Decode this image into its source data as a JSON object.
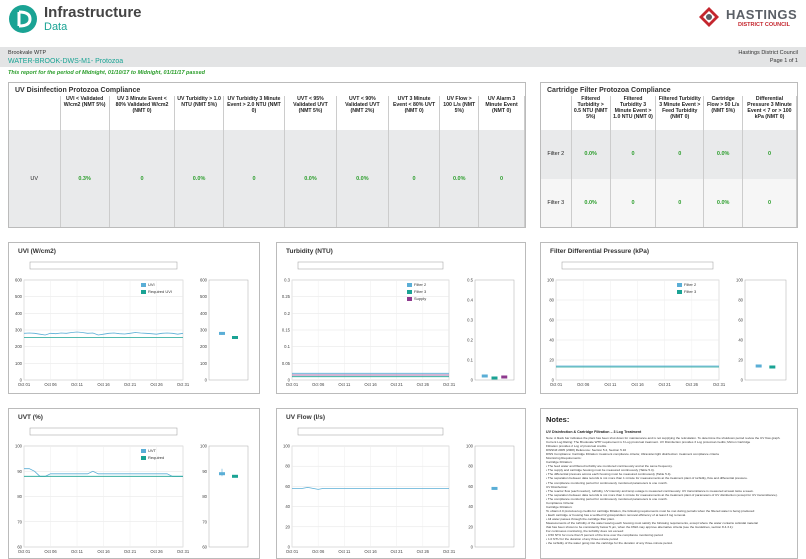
{
  "header": {
    "brand_title": "Infrastructure",
    "brand_sub": "Data",
    "council_title": "HASTINGS",
    "council_sub": "DISTRICT COUNCIL"
  },
  "meta": {
    "plant": "Brookvale WTP",
    "report_name": "WATER-BROOK-DWS-M1- Protozoa",
    "org": "Hastings District Council",
    "page": "Page 1 of 1",
    "period": "This report for the period of Midnight, 01/10/17 to Midnight, 01/11/17 passed"
  },
  "uv_table": {
    "title": "UV Disinfection Protozoa Compliance",
    "headers": [
      "UVI < Validated W/cm2 (NMT 5%)",
      "UV 3 Minute Event < 80% Validated W/cm2 (NMT 0)",
      "UV Turbidity > 1.0 NTU (NMT 5%)",
      "UV Turbidity 3 Minute Event > 2.0 NTU (NMT 0)",
      "UVT < 95% Validated UVT (NMT 5%)",
      "UVT < 90% Validated UVT (NMT 2%)",
      "UVT 3 Minute Event < 80% UVT (NMT 0)",
      "UV Flow > 100 L/s (NMT 5%)",
      "UV Alarm 3 Minute Event (NMT 0)"
    ],
    "rows": [
      {
        "label": "UV",
        "values": [
          "0.3%",
          "0",
          "0.0%",
          "0",
          "0.0%",
          "0.0%",
          "0",
          "0.0%",
          "0"
        ]
      }
    ]
  },
  "cf_table": {
    "title": "Cartridge Filter Protozoa Compliance",
    "headers": [
      "Filtered Turbidity > 0.5 NTU (NMT 5%)",
      "Filtered Turbidity 3 Minute Event > 1.0 NTU (NMT 0)",
      "Filtered Turbidity 3 Minute Event > Feed Turbidity (NMT 0)",
      "Cartridge Flow > 50 L/s (NMT 5%)",
      "Differential Pressure 3 Minute Event < 7 or > 100 kPa (NMT 0)"
    ],
    "rows": [
      {
        "label": "Filter 2",
        "values": [
          "0.0%",
          "0",
          "0",
          "0.0%",
          "0"
        ]
      },
      {
        "label": "Filter 3",
        "values": [
          "0.0%",
          "0",
          "0",
          "0.0%",
          "0"
        ]
      }
    ]
  },
  "chart_data": [
    {
      "title": "UVI (W/cm2)",
      "type": "line",
      "x_ticks": [
        "Oct 01",
        "Oct 06",
        "Oct 11",
        "Oct 16",
        "Oct 21",
        "Oct 26",
        "Oct 31"
      ],
      "ylim": [
        0,
        600
      ],
      "y_ticks": [
        "0",
        "100",
        "200",
        "300",
        "400",
        "500",
        "600"
      ],
      "legend": [
        "UVI",
        "Required UVI"
      ],
      "series": [
        {
          "name": "UVI",
          "color": "#5aaed6",
          "values": [
            280,
            282,
            280,
            275,
            270,
            280,
            278,
            282,
            280,
            285,
            288,
            285,
            280,
            282,
            270,
            275,
            280,
            282,
            278,
            276,
            280,
            285,
            282,
            280,
            278,
            275,
            280,
            282,
            280,
            275,
            280
          ]
        },
        {
          "name": "Required UVI",
          "color": "#1aa394",
          "values": [
            255,
            255,
            255,
            255,
            255,
            255,
            255,
            255,
            255,
            255,
            255,
            255,
            255,
            255,
            255,
            255,
            255,
            255,
            255,
            255,
            255,
            255,
            255,
            255,
            255,
            255,
            255,
            255,
            255,
            255,
            255
          ]
        }
      ],
      "box_ylim": [
        0,
        600
      ],
      "box_y_ticks": [
        "0",
        "100",
        "200",
        "300",
        "400",
        "500",
        "600"
      ]
    },
    {
      "title": "Turbidity (NTU)",
      "type": "line",
      "x_ticks": [
        "Oct 01",
        "Oct 06",
        "Oct 11",
        "Oct 16",
        "Oct 21",
        "Oct 26",
        "Oct 31"
      ],
      "ylim": [
        0,
        0.3
      ],
      "y_ticks": [
        "0",
        "0.05",
        "0.1",
        "0.15",
        "0.2",
        "0.25",
        "0.3"
      ],
      "legend": [
        "Filter 2",
        "Filter 3",
        "Supply"
      ],
      "series": [
        {
          "name": "Filter 2",
          "color": "#5aaed6",
          "values": [
            0.02,
            0.02,
            0.02,
            0.02,
            0.02,
            0.02,
            0.02,
            0.02,
            0.02,
            0.02,
            0.02,
            0.02,
            0.02,
            0.02,
            0.02,
            0.02,
            0.02,
            0.02,
            0.02,
            0.02,
            0.02,
            0.02,
            0.02,
            0.02,
            0.02,
            0.02,
            0.02,
            0.02,
            0.02,
            0.02,
            0.02
          ]
        },
        {
          "name": "Filter 3",
          "color": "#1aa394",
          "values": [
            0.01,
            0.01,
            0.01,
            0.01,
            0.01,
            0.01,
            0.01,
            0.01,
            0.01,
            0.01,
            0.01,
            0.01,
            0.01,
            0.01,
            0.01,
            0.01,
            0.01,
            0.01,
            0.01,
            0.01,
            0.01,
            0.01,
            0.01,
            0.01,
            0.01,
            0.01,
            0.01,
            0.01,
            0.01,
            0.01,
            0.01
          ]
        },
        {
          "name": "Supply",
          "color": "#8e3a8e",
          "values": [
            0.015,
            0.015,
            0.015,
            0.015,
            0.015,
            0.015,
            0.015,
            0.015,
            0.015,
            0.015,
            0.015,
            0.015,
            0.015,
            0.015,
            0.015,
            0.015,
            0.015,
            0.015,
            0.015,
            0.015,
            0.015,
            0.015,
            0.015,
            0.015,
            0.015,
            0.015,
            0.015,
            0.015,
            0.015,
            0.015,
            0.015
          ]
        }
      ],
      "box_ylim": [
        0,
        0.5
      ],
      "box_y_ticks": [
        "0",
        "0.1",
        "0.2",
        "0.3",
        "0.4",
        "0.5"
      ]
    },
    {
      "title": "Filter Differential Pressure (kPa)",
      "type": "line",
      "x_ticks": [
        "Oct 01",
        "Oct 06",
        "Oct 11",
        "Oct 16",
        "Oct 21",
        "Oct 26",
        "Oct 31"
      ],
      "ylim": [
        0,
        100
      ],
      "y_ticks": [
        "0",
        "20",
        "40",
        "60",
        "80",
        "100"
      ],
      "legend": [
        "Filter 2",
        "Filter 3"
      ],
      "series": [
        {
          "name": "Filter 2",
          "color": "#5aaed6",
          "values": [
            14,
            14,
            14,
            14,
            14,
            14,
            14,
            14,
            14,
            14,
            14,
            14,
            14,
            14,
            14,
            14,
            14,
            14,
            14,
            14,
            14,
            14,
            14,
            14,
            14,
            14,
            14,
            14,
            14,
            14,
            14
          ]
        },
        {
          "name": "Filter 3",
          "color": "#1aa394",
          "values": [
            13,
            13,
            13,
            13,
            13,
            13,
            13,
            13,
            13,
            13,
            13,
            13,
            13,
            13,
            13,
            13,
            13,
            13,
            13,
            13,
            13,
            13,
            13,
            13,
            13,
            13,
            13,
            13,
            13,
            13,
            13
          ]
        }
      ],
      "box_ylim": [
        0,
        100
      ],
      "box_y_ticks": [
        "0",
        "20",
        "40",
        "60",
        "80",
        "100"
      ]
    },
    {
      "title": "UVT (%)",
      "type": "line",
      "x_ticks": [
        "Oct 01",
        "Oct 06",
        "Oct 11",
        "Oct 16",
        "Oct 21",
        "Oct 26",
        "Oct 31"
      ],
      "ylim": [
        60,
        100
      ],
      "y_ticks": [
        "60",
        "70",
        "80",
        "90",
        "100"
      ],
      "legend": [
        "UVT",
        "Required"
      ],
      "series": [
        {
          "name": "UVT",
          "color": "#5aaed6",
          "values": [
            91,
            91,
            90,
            88,
            88,
            89,
            89,
            89,
            89,
            89,
            89,
            89,
            89,
            90,
            89,
            89,
            89,
            89,
            89,
            89,
            89,
            89,
            89,
            89,
            89,
            89,
            89,
            89,
            88,
            88,
            88
          ]
        },
        {
          "name": "Required",
          "color": "#1aa394",
          "values": [
            88,
            88,
            88,
            88,
            88,
            88,
            88,
            88,
            88,
            88,
            88,
            88,
            88,
            88,
            88,
            88,
            88,
            88,
            88,
            88,
            88,
            88,
            88,
            88,
            88,
            88,
            88,
            88,
            88,
            88,
            88
          ]
        }
      ],
      "box_ylim": [
        60,
        100
      ],
      "box_y_ticks": [
        "60",
        "70",
        "80",
        "90",
        "100"
      ]
    },
    {
      "title": "UV Flow (l/s)",
      "type": "line",
      "x_ticks": [
        "Oct 01",
        "Oct 06",
        "Oct 11",
        "Oct 16",
        "Oct 21",
        "Oct 26",
        "Oct 31"
      ],
      "ylim": [
        0,
        100
      ],
      "y_ticks": [
        "0",
        "20",
        "40",
        "60",
        "80",
        "100"
      ],
      "legend": [],
      "series": [
        {
          "name": "",
          "color": "#5aaed6",
          "values": [
            58,
            58,
            58,
            59,
            58,
            57,
            58,
            58,
            58,
            58,
            58,
            58,
            58,
            58,
            58,
            58,
            58,
            58,
            58,
            58,
            58,
            58,
            58,
            58,
            58,
            58,
            58,
            58,
            58,
            58,
            58
          ]
        }
      ],
      "box_ylim": [
        0,
        100
      ],
      "box_y_ticks": [
        "0",
        "20",
        "40",
        "60",
        "80",
        "100"
      ]
    }
  ],
  "notes": {
    "title": "Notes:",
    "heading": "UV Disinfection & Cartridge Filtration – 3 Log Treatment",
    "lines": [
      "Note: A black bar indicates the plant has been shut down for maintenance and is not supplying the reticulation. To determine the shutdown period review the UV flow graph.",
      "Current Log Rating: The Brookvale WTP requirement is 3 Log protozoal treatment. UV Disinfection provides 3 Log protozoal credits; Micron Cartridge",
      "Filtration provides 2 Log of protozoal credits.",
      "DWSNZ 2005 (2008) Reference: Section 5.2, Section 5.16",
      "DWS Compliance: Cartridge Filtration: treatment compliance criteria; Ultraviolet light disinfection: treatment compliance criteria",
      "Monitoring Requirements:",
      "Cartridge Filtration:",
      "• The feed water and filtered turbidity are monitored continuously and at the same frequency.",
      "• The supply and cartridge housing must be measured continuously (Table 5.4).",
      "• The differential pressure across each housing must be measured continuously (Table 5.4).",
      "• The separation between data records is not more than 1 minute for measurements at the treatment plant of turbidity, flow and differential pressure.",
      "• The compliance monitoring period for continuously monitored parameters is one month.",
      "UV Disinfection:",
      "• The reactor flow (each reactor), turbidity, UV intensity and lamp outage is measured continuously. UV transmittance is measured at least twice a week.",
      "• The separation between data records is not more than 1 minute for measurements at the treatment plant of parameters of UV disinfection (except for UV transmittance).",
      "• The compliance monitoring period for continuously monitored parameters is one month.",
      "Compliance Criteria:",
      "Cartridge Filtration:",
      "To obtain 2.0 protozoa log credits for cartridge filtration, the following requirements must be met during periods when the filtered water is being produced:",
      "• Each cartridge or housing has a verified Cryptosporidium removal efficiency of at least 3 log removal.",
      "• All water passes through the cartridge filter plant.",
      "Measurements of the turbidity of the water leaving each housing must satisfy the following requirements, except where the water contains colloidal material",
      "that has been shown to be consistently below 5 μm, when the DWA may approve alternative criteria (see the Guidelines, section 8.4.3.1):",
      "For continuous monitoring, the turbidity does not exceed:",
      "• 0.50 NTU for more than 5 percent of the time over the compliance monitoring period",
      "• 1.0 NTU for the duration of any three-minute period",
      "• the turbidity of the water going into the cartridge for the duration of any three-minute period."
    ]
  }
}
